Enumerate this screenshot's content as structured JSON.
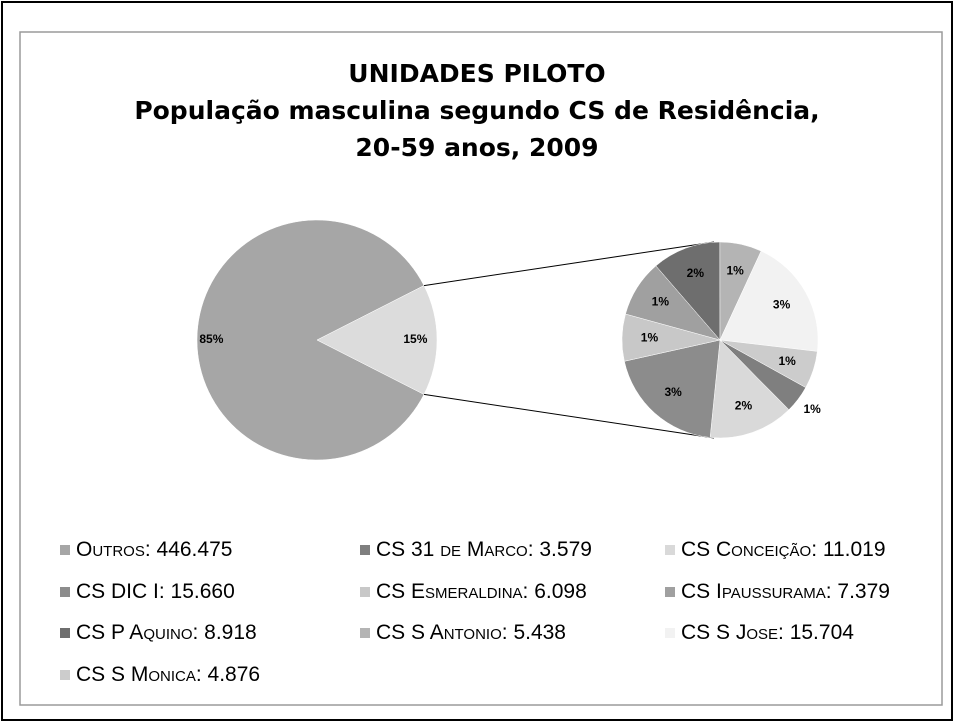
{
  "chart_data": {
    "type": "pie-of-pie",
    "title": [
      "UNIDADES PILOTO",
      "População masculina segundo CS de Residência,",
      "20-59 anos, 2009"
    ],
    "categories": [
      "Outros",
      "CS 31 de Marco",
      "CS Conceição",
      "CS DIC I",
      "CS Esmeraldina",
      "CS Ipaussurama",
      "CS P Aquino",
      "CS S Antonio",
      "CS S Jose",
      "CS S Monica"
    ],
    "values": [
      446475,
      3579,
      11019,
      15660,
      6098,
      7379,
      8918,
      5438,
      15704,
      4876
    ],
    "value_labels": [
      "446.475",
      "3.579",
      "11.019",
      "15.660",
      "6.098",
      "7.379",
      "8.918",
      "5.438",
      "15.704",
      "4.876"
    ],
    "colors": [
      "#a6a6a6",
      "#7f7f7f",
      "#d9d9d9",
      "#8c8c8c",
      "#c8c8c8",
      "#a0a0a0",
      "#6e6e6e",
      "#b4b4b4",
      "#f2f2f2",
      "#cccccc"
    ],
    "primary_percents": {
      "values": [
        85,
        15
      ],
      "labels": [
        "85%",
        "15%"
      ],
      "colors": [
        "#a6a6a6",
        "#dcdcdc"
      ]
    },
    "secondary_percents": {
      "values": [
        1,
        2,
        3,
        1,
        1,
        2,
        1,
        3,
        1
      ],
      "labels": [
        "1%",
        "2%",
        "3%",
        "1%",
        "1%",
        "2%",
        "1%",
        "3%",
        "1%"
      ]
    }
  }
}
